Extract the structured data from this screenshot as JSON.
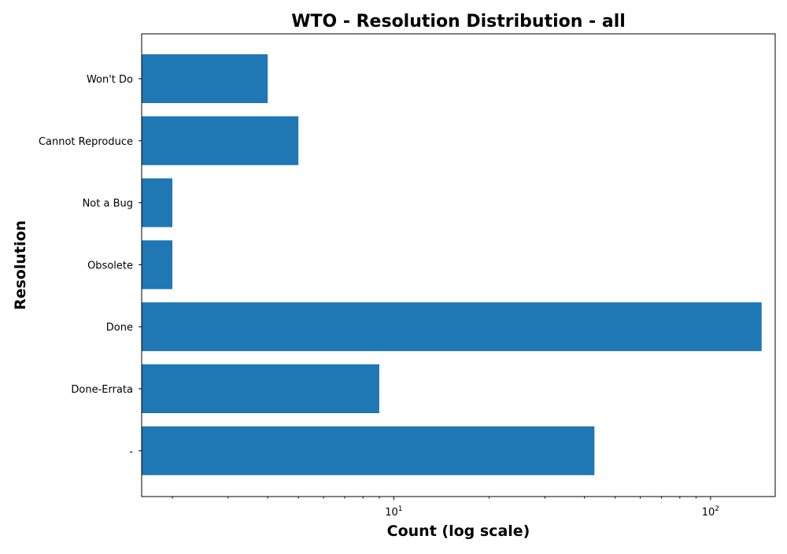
{
  "chart_data": {
    "type": "bar",
    "orientation": "horizontal",
    "title": "WTO - Resolution Distribution - all",
    "xlabel": "Count (log scale)",
    "ylabel": "Resolution",
    "x_scale": "log",
    "xlim": [
      1.6,
      160
    ],
    "categories": [
      "Won't Do",
      "Cannot Reproduce",
      "Not a Bug",
      "Obsolete",
      "Done",
      "Done-Errata",
      "-"
    ],
    "values": [
      4,
      5,
      2,
      2,
      145,
      9,
      43
    ],
    "x_ticks": [
      {
        "value": 10,
        "base": "10",
        "exp": "1"
      },
      {
        "value": 100,
        "base": "10",
        "exp": "2"
      }
    ],
    "bar_color": "#1f77b4",
    "grid": false,
    "legend": "none"
  }
}
